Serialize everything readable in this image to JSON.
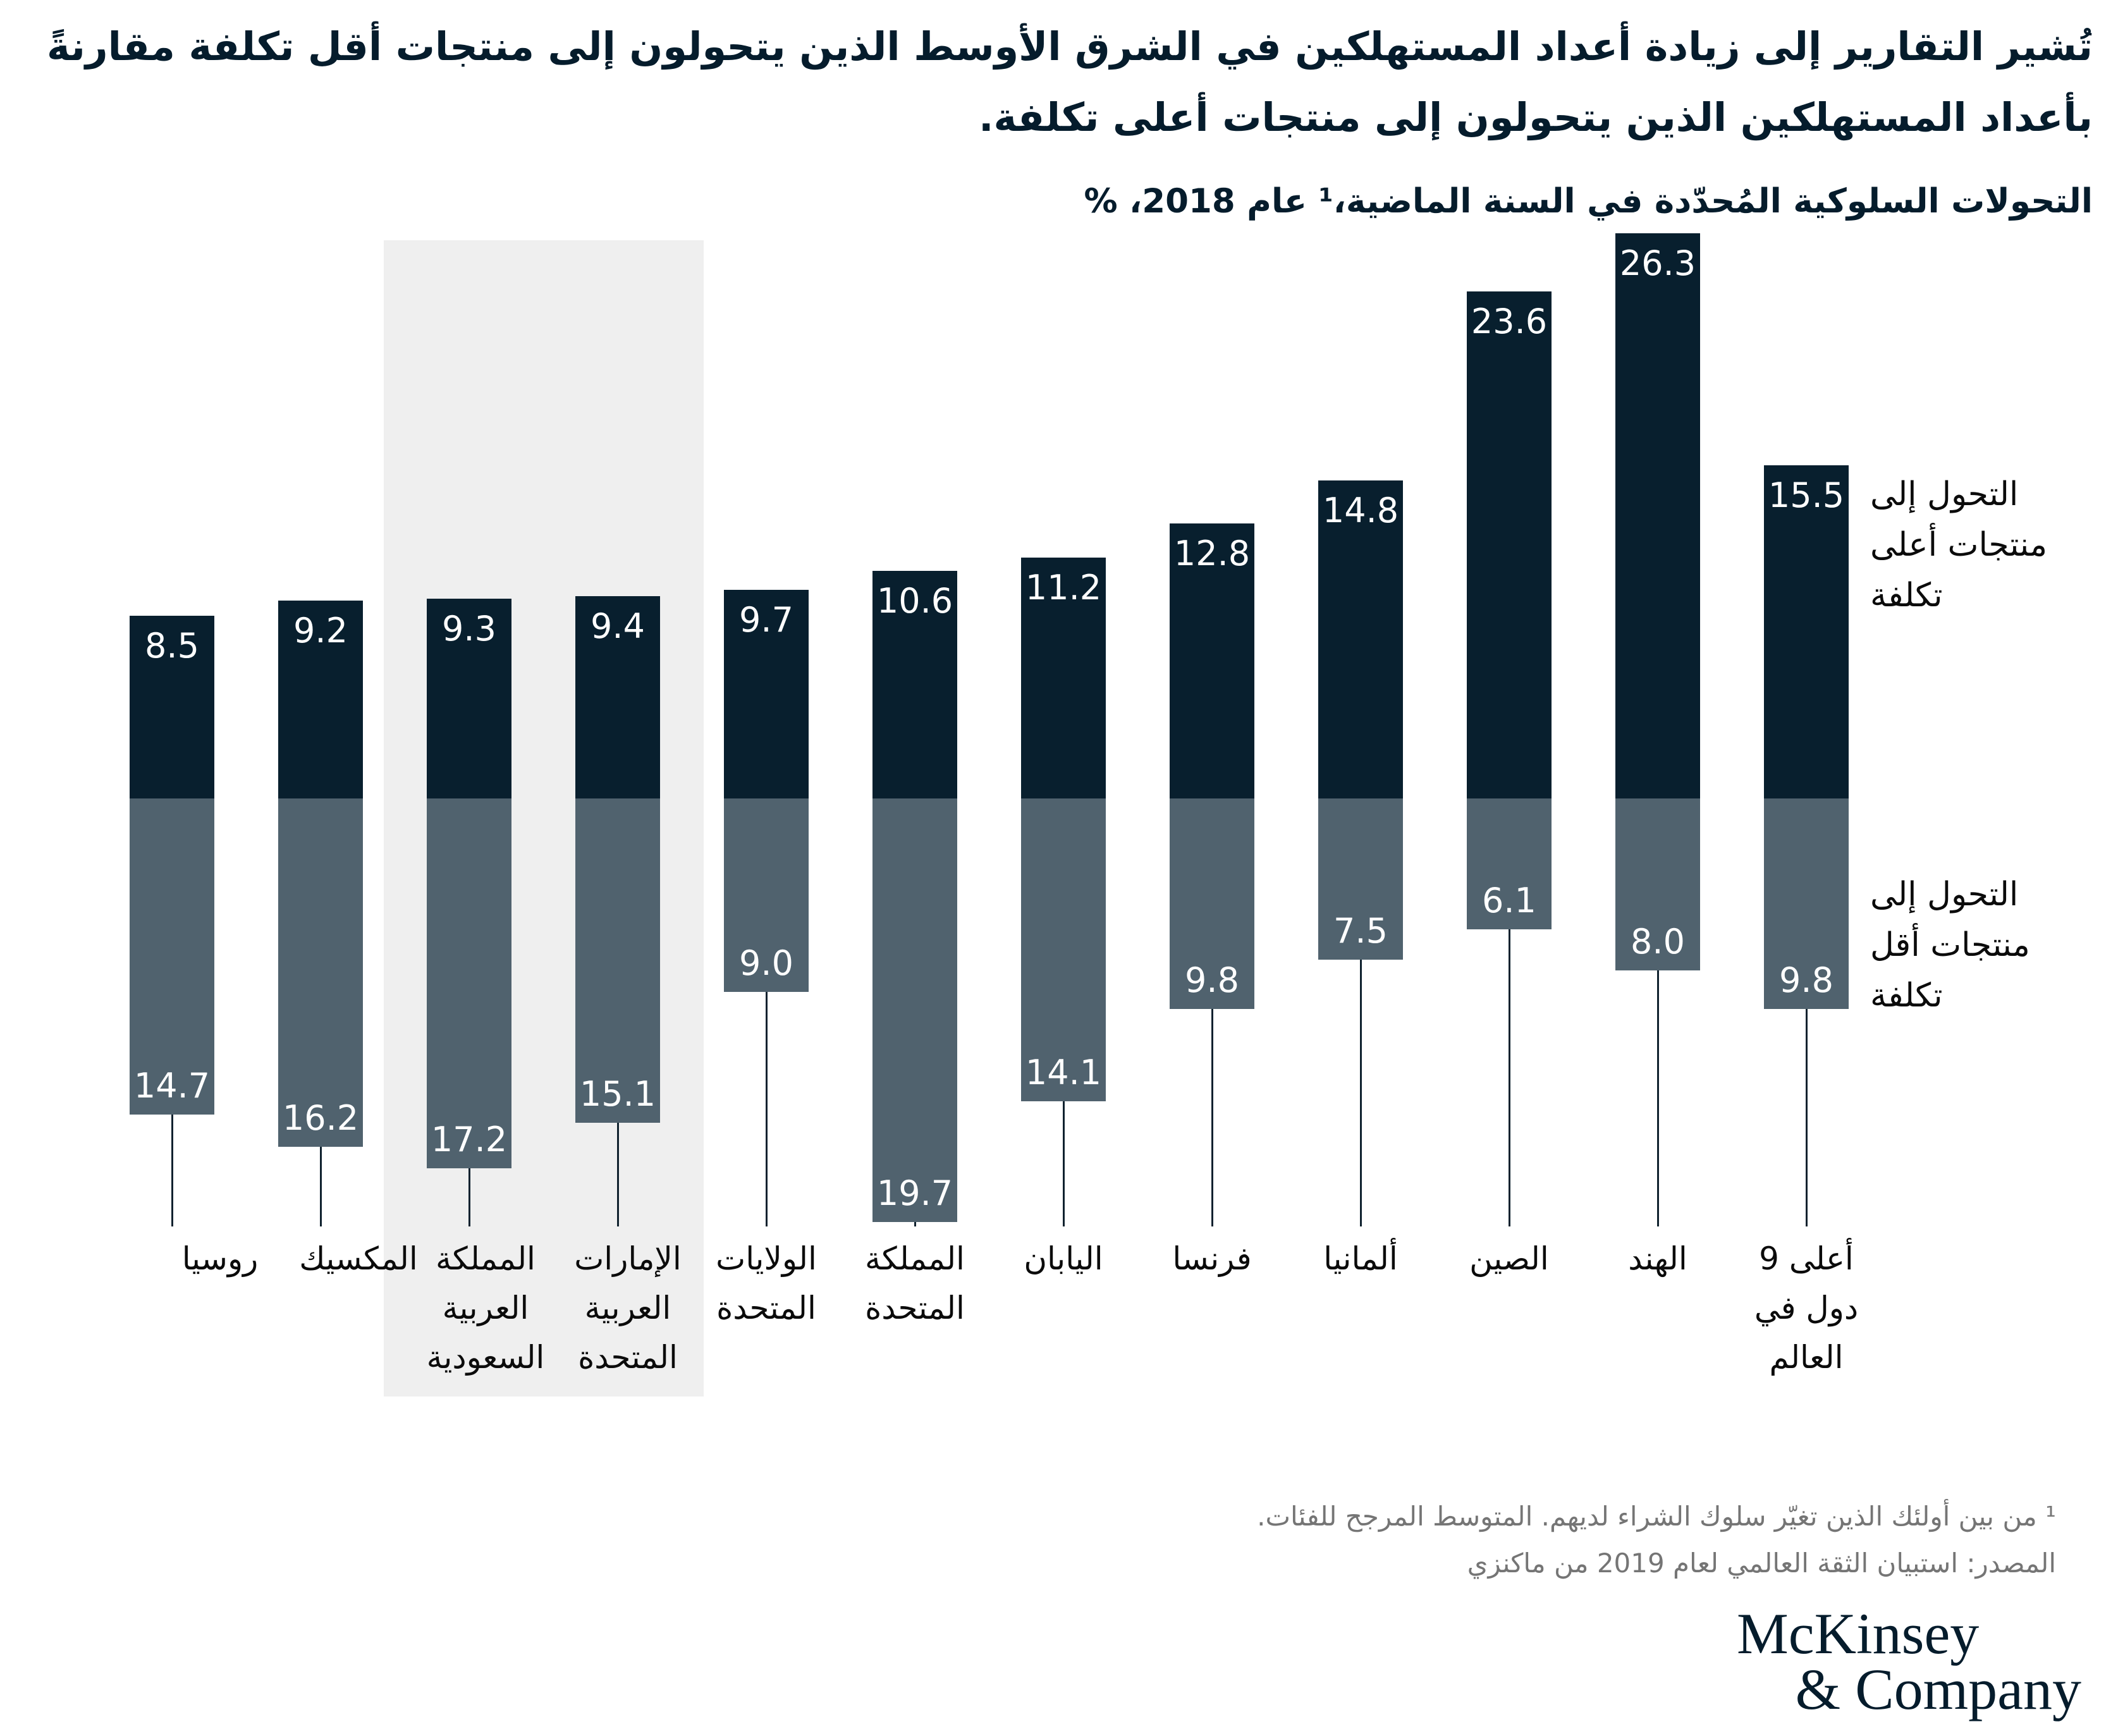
{
  "title": "تُشير التقارير إلى زيادة أعداد المستهلكين في الشرق الأوسط الذين يتحولون إلى منتجات أقل تكلفة مقارنةً\nبأعداد المستهلكين الذين يتحولون إلى منتجات أعلى تكلفة.",
  "subtitle": "التحولات السلوكية المُحدّدة في السنة الماضية،¹ عام 2018، %",
  "legend": {
    "up": "التحول إلى\nمنتجات أعلى\nتكلفة",
    "down": "التحول إلى\nمنتجات أقل\nتكلفة"
  },
  "footnote": "¹ من بين أولئك الذين تغيّر سلوك الشراء لديهم. المتوسط المرجح للفئات.",
  "source": "المصدر: استبيان الثقة العالمي لعام 2019 من ماكنزي",
  "logo": {
    "line1": "McKinsey",
    "line2": "& Company"
  },
  "colors": {
    "up": "#081f2e",
    "down": "#50626e",
    "highlight": "#efefef",
    "title": "#051c2c",
    "label": "#0b0b0b",
    "value": "#ffffff",
    "footnote": "#757575"
  },
  "chart_data": {
    "type": "bar",
    "subtype": "diverging-stacked-columns",
    "unit": "%",
    "categories": [
      "روسيا",
      "المكسيك",
      "المملكة العربية السعودية",
      "الإمارات العربية المتحدة",
      "الولايات المتحدة",
      "المملكة المتحدة",
      "اليابان",
      "فرنسا",
      "ألمانيا",
      "الصين",
      "الهند",
      "أعلى 9 دول في العالم"
    ],
    "ids": [
      "russia",
      "mexico",
      "saudi-arabia",
      "uae",
      "united-states",
      "united-kingdom",
      "japan",
      "france",
      "germany",
      "china",
      "india",
      "top-9-world"
    ],
    "label_lines": [
      [
        "روسيا"
      ],
      [
        "المكسيك"
      ],
      [
        "المملكة",
        "العربية",
        "السعودية"
      ],
      [
        "الإمارات",
        "العربية",
        "المتحدة"
      ],
      [
        "الولايات",
        "المتحدة"
      ],
      [
        "المملكة",
        "المتحدة"
      ],
      [
        "اليابان"
      ],
      [
        "فرنسا"
      ],
      [
        "ألمانيا"
      ],
      [
        "الصين"
      ],
      [
        "الهند"
      ],
      [
        "أعلى 9",
        "دول في",
        "العالم"
      ]
    ],
    "series": [
      {
        "name": "التحول إلى منتجات أعلى تكلفة",
        "direction": "up",
        "values": [
          8.5,
          9.2,
          9.3,
          9.4,
          9.7,
          10.6,
          11.2,
          12.8,
          14.8,
          23.6,
          26.3,
          15.5
        ]
      },
      {
        "name": "التحول إلى منتجات أقل تكلفة",
        "direction": "down",
        "values": [
          14.7,
          16.2,
          17.2,
          15.1,
          9.0,
          19.7,
          14.1,
          9.8,
          7.5,
          6.1,
          8.0,
          9.8
        ]
      }
    ],
    "highlighted_categories": [
      "المملكة العربية السعودية",
      "الإمارات العربية المتحدة"
    ],
    "legend_position": "right",
    "grid": false
  }
}
